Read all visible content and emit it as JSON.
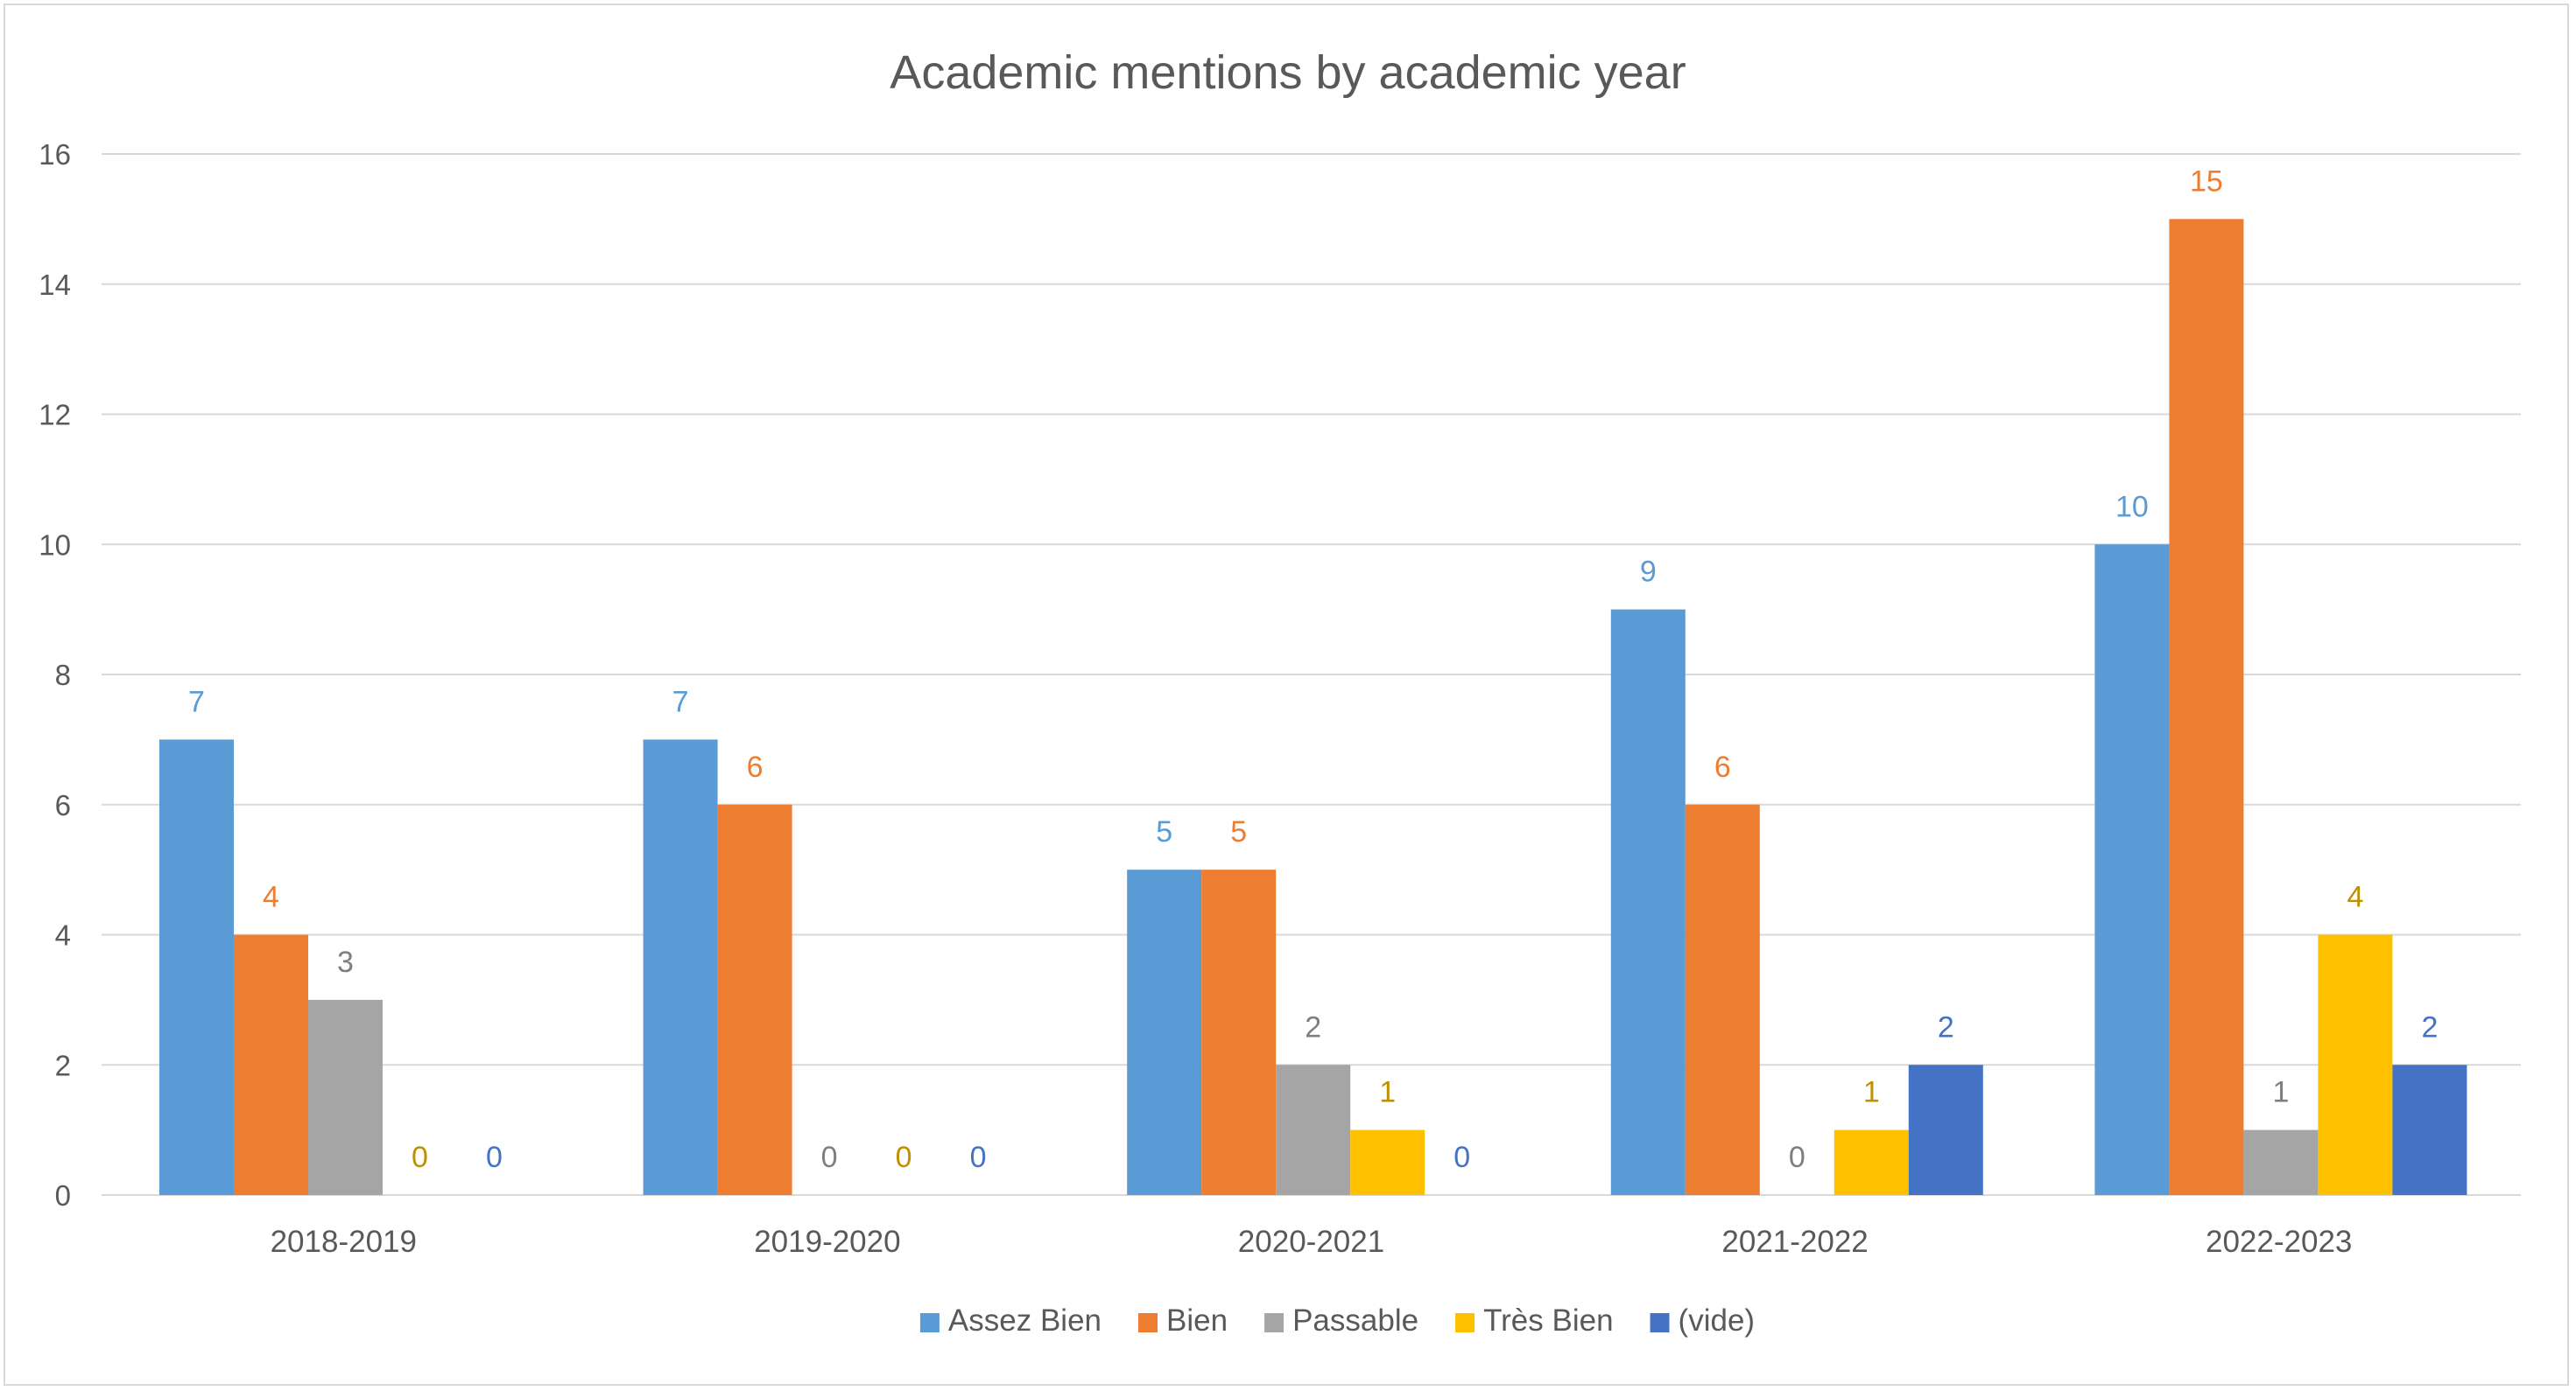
{
  "chart_data": {
    "type": "bar",
    "title": "Academic mentions by academic year",
    "xlabel": "",
    "ylabel": "",
    "categories": [
      "2018-2019",
      "2019-2020",
      "2020-2021",
      "2021-2022",
      "2022-2023"
    ],
    "ylim": [
      0,
      16
    ],
    "yticks": [
      0,
      2,
      4,
      6,
      8,
      10,
      12,
      14,
      16
    ],
    "grid": true,
    "legend": "bottom",
    "series": [
      {
        "name": "Assez Bien",
        "color": "#5b9bd5",
        "label_color": "#5b9bd5",
        "values": [
          7,
          7,
          5,
          9,
          10
        ]
      },
      {
        "name": "Bien",
        "color": "#ed7d31",
        "label_color": "#ed7d31",
        "values": [
          4,
          6,
          5,
          6,
          15
        ]
      },
      {
        "name": "Passable",
        "color": "#a5a5a5",
        "label_color": "#7f7f7f",
        "values": [
          3,
          0,
          2,
          0,
          1
        ]
      },
      {
        "name": "Très Bien",
        "color": "#ffc000",
        "label_color": "#bf9000",
        "values": [
          0,
          0,
          1,
          1,
          4
        ]
      },
      {
        "name": "(vide)",
        "color": "#4472c4",
        "label_color": "#4472c4",
        "values": [
          0,
          0,
          0,
          2,
          2
        ]
      }
    ]
  }
}
